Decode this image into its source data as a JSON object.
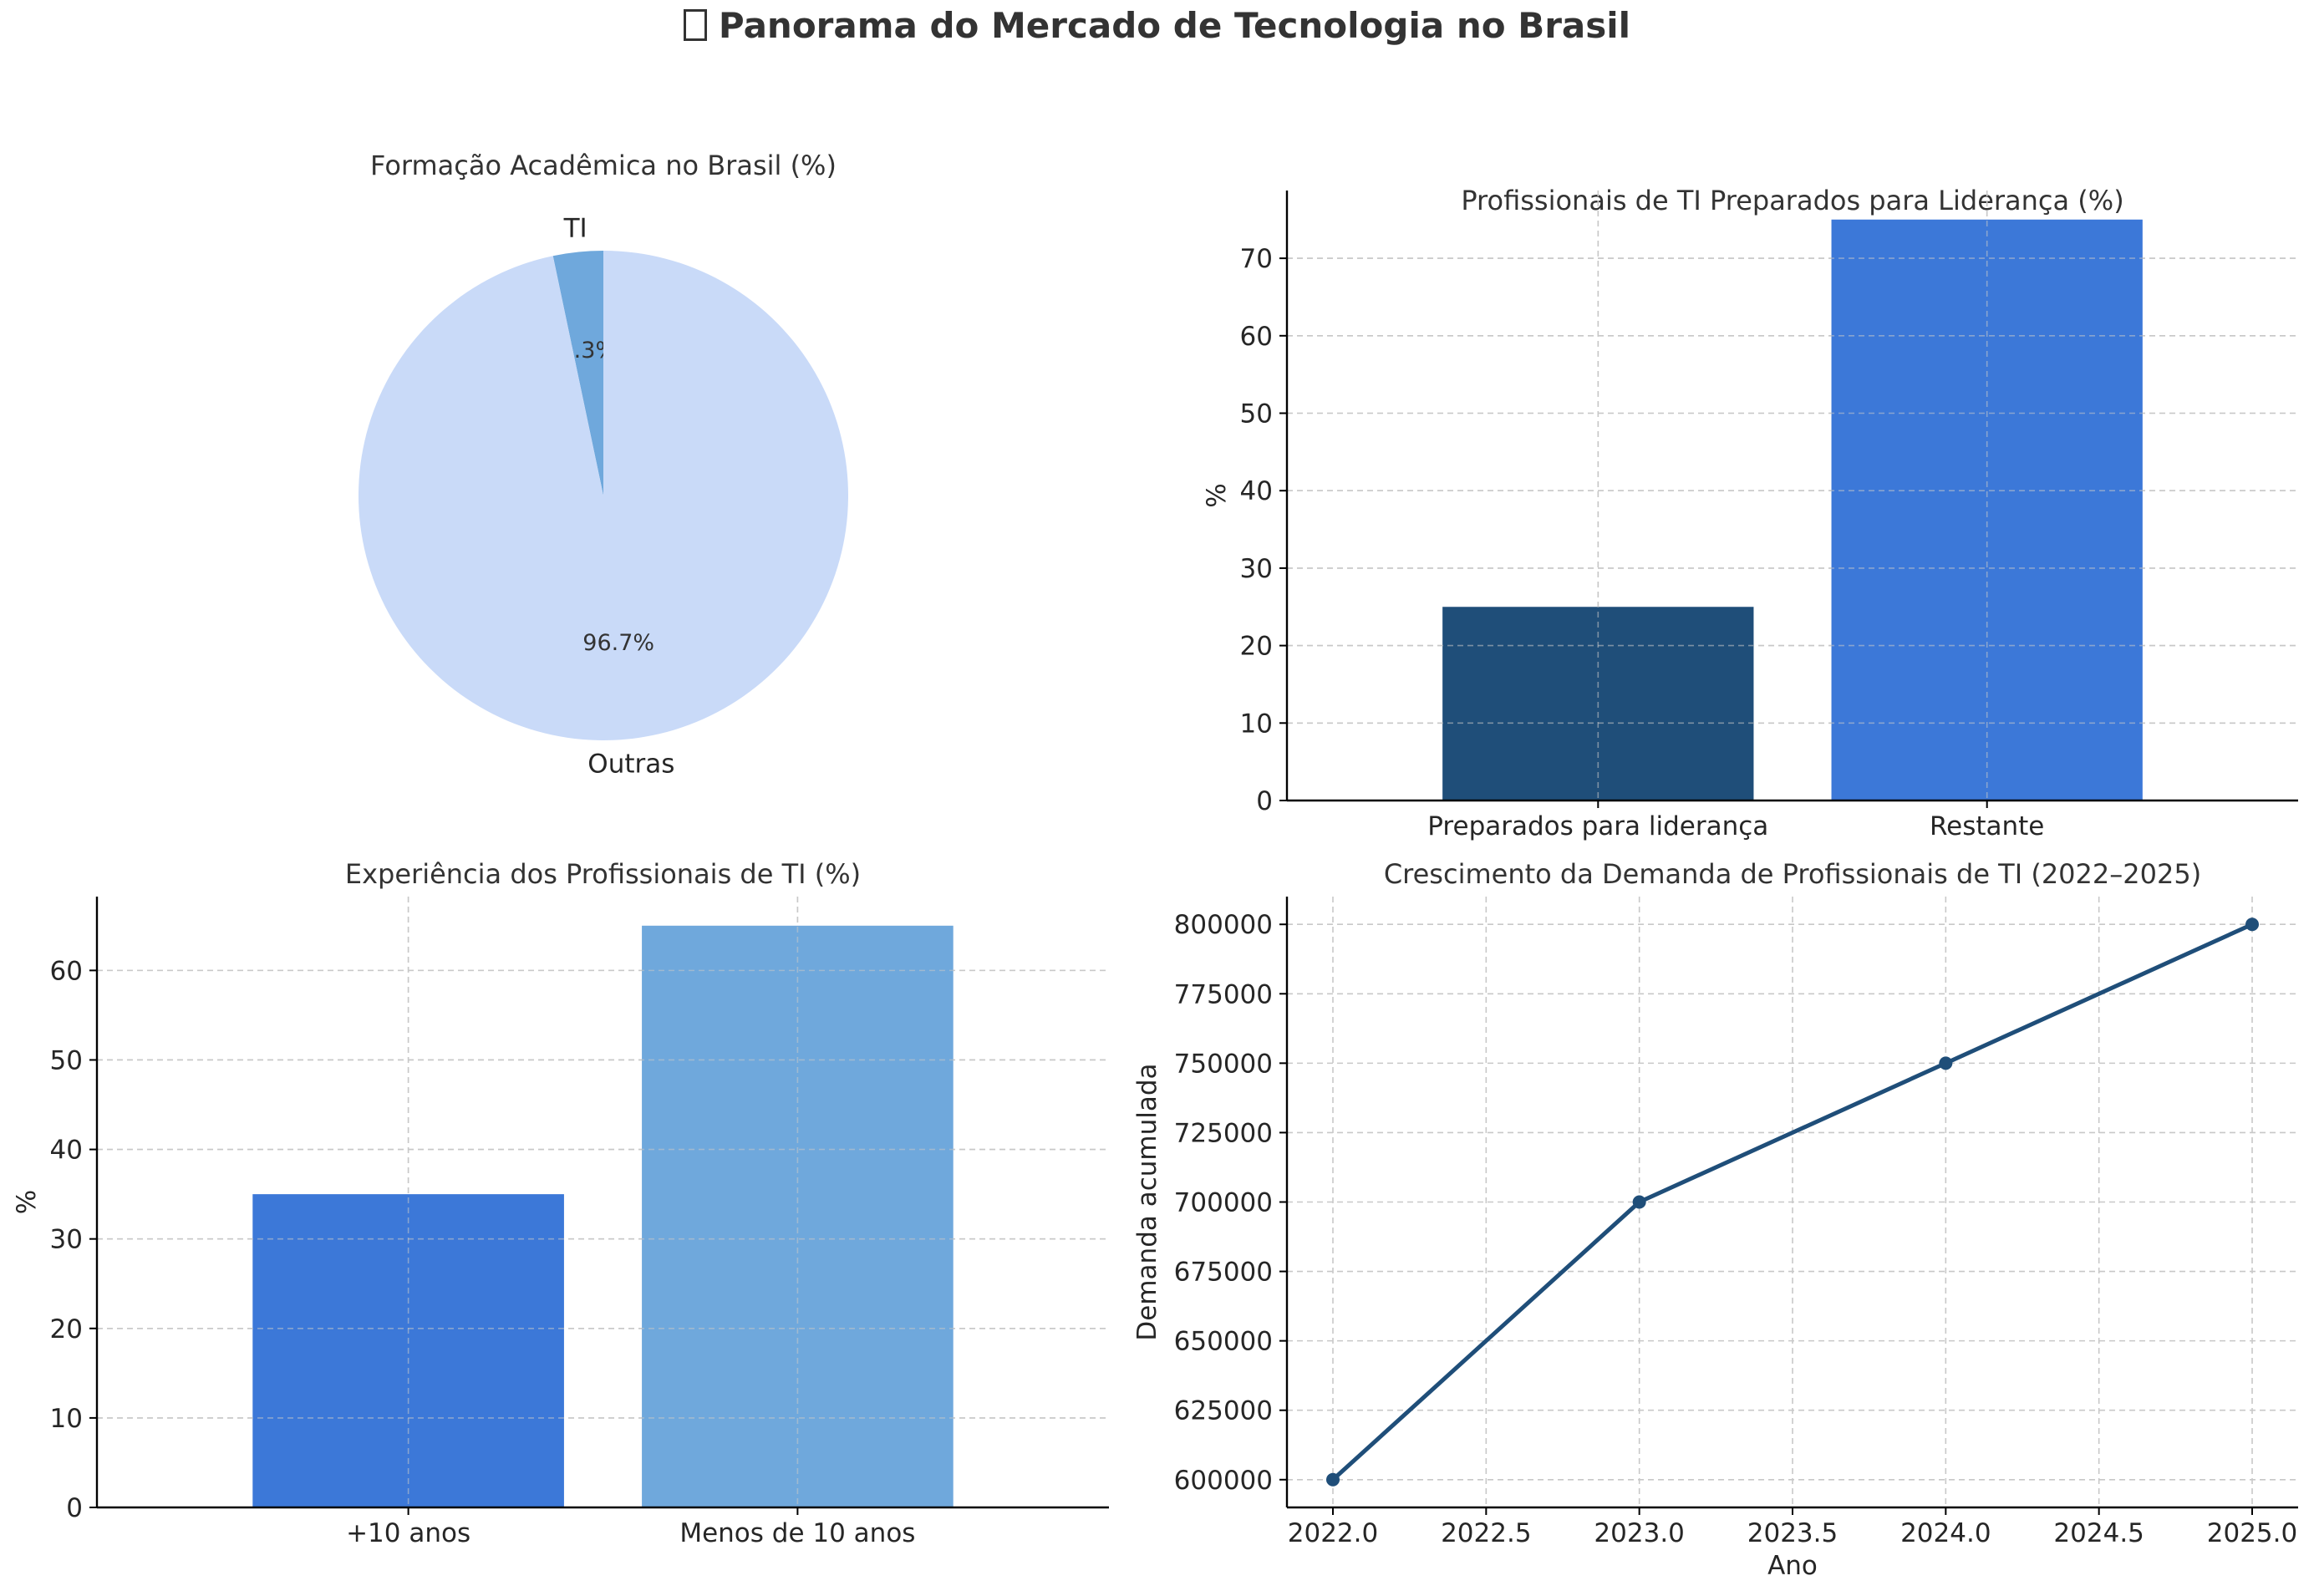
{
  "figure": {
    "title": "Panorama do Mercado de Tecnologia no Brasil",
    "title_icon": "unrendered-emoji-glyph"
  },
  "chart_data": [
    {
      "type": "pie",
      "title": "Formação Acadêmica no Brasil (%)",
      "labels": [
        "TI",
        "Outras"
      ],
      "values": [
        3.3,
        96.7
      ],
      "value_labels": [
        "3.3%",
        "96.7%"
      ],
      "colors": [
        "#6fa8dc",
        "#c9daf8"
      ],
      "start": "top, counter-clockwise"
    },
    {
      "type": "bar",
      "title": "Profissionais de TI Preparados para Liderança (%)",
      "categories": [
        "Preparados para liderança",
        "Restante"
      ],
      "values": [
        25,
        75
      ],
      "colors": [
        "#1f4e79",
        "#3c78d8"
      ],
      "xlabel": "",
      "ylabel": "%",
      "ylim": [
        0,
        78.75
      ],
      "yticks": [
        0,
        10,
        20,
        30,
        40,
        50,
        60,
        70
      ],
      "grid": true
    },
    {
      "type": "bar",
      "title": "Experiência dos Profissionais de TI (%)",
      "categories": [
        "+10 anos",
        "Menos de 10 anos"
      ],
      "values": [
        35,
        65
      ],
      "colors": [
        "#3c78d8",
        "#6fa8dc"
      ],
      "xlabel": "",
      "ylabel": "%",
      "ylim": [
        0,
        68.25
      ],
      "yticks": [
        0,
        10,
        20,
        30,
        40,
        50,
        60
      ],
      "grid": true
    },
    {
      "type": "line",
      "title": "Crescimento da Demanda de Profissionais de TI (2022–2025)",
      "x": [
        2022,
        2023,
        2024,
        2025
      ],
      "series": [
        {
          "values": [
            600000,
            700000,
            750000,
            800000
          ]
        }
      ],
      "color": "#1f4e79",
      "markers": true,
      "xlabel": "Ano",
      "ylabel": "Demanda acumulada",
      "xlim": [
        2021.85,
        2025.15
      ],
      "ylim": [
        590000,
        810000
      ],
      "xticks": [
        "2022.0",
        "2022.5",
        "2023.0",
        "2023.5",
        "2024.0",
        "2024.5",
        "2025.0"
      ],
      "yticks": [
        "600000",
        "625000",
        "650000",
        "675000",
        "700000",
        "725000",
        "750000",
        "775000",
        "800000"
      ],
      "grid": true
    }
  ]
}
